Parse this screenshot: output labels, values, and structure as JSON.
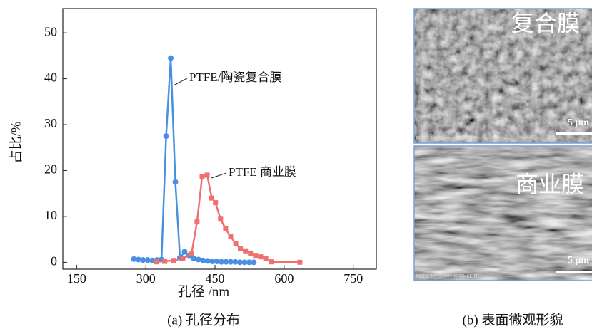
{
  "chart_data": {
    "type": "line",
    "xlabel": "孔径 /nm",
    "ylabel": "占比/%",
    "caption": "(a) 孔径分布",
    "xlim": [
      120,
      800
    ],
    "ylim": [
      -1.5,
      55.3
    ],
    "xticks": [
      150,
      300,
      450,
      600,
      750
    ],
    "yticks": [
      0,
      10,
      20,
      30,
      40,
      50
    ],
    "series": [
      {
        "name": "PTFE/陶瓷复合膜",
        "color": "#4a90e2",
        "marker": "circle",
        "x": [
          274,
          284,
          294,
          304,
          314,
          324,
          334,
          344,
          354,
          364,
          374,
          384,
          394,
          404,
          414,
          424,
          434,
          444,
          454,
          464,
          474,
          484,
          494,
          504,
          514,
          524,
          534
        ],
        "values": [
          0.7,
          0.6,
          0.5,
          0.5,
          0.4,
          0.5,
          0.6,
          27.5,
          44.5,
          17.5,
          1.0,
          2.3,
          1.5,
          0.8,
          0.6,
          0.4,
          0.3,
          0.2,
          0.2,
          0.1,
          0.1,
          0.1,
          0.1,
          0.0,
          0.0,
          0.0,
          0.0
        ]
      },
      {
        "name": "PTFE 商业膜",
        "color": "#f07070",
        "marker": "square",
        "x": [
          323,
          341,
          360,
          380,
          399,
          411,
          422,
          433,
          443,
          451,
          462,
          473,
          484,
          495,
          505,
          516,
          527,
          538,
          549,
          560,
          572,
          634
        ],
        "values": [
          0.1,
          0.2,
          0.4,
          0.8,
          1.8,
          8.8,
          18.7,
          19.0,
          14.0,
          13.0,
          9.4,
          7.3,
          5.6,
          4.0,
          3.0,
          2.5,
          2.0,
          1.5,
          1.2,
          0.8,
          0.1,
          0.0
        ]
      }
    ]
  },
  "figure_b": {
    "caption": "(b) 表面微观形貌",
    "panels": [
      {
        "label": "复合膜",
        "scale_bar": "5 μm",
        "info": "MST 5.0kV 9.9mm x5.00k SE(M)"
      },
      {
        "label": "商业膜",
        "scale_bar": "5 μm",
        "info": "MST 5.0kV 9.9mm x5.00k SE(M)"
      }
    ]
  }
}
